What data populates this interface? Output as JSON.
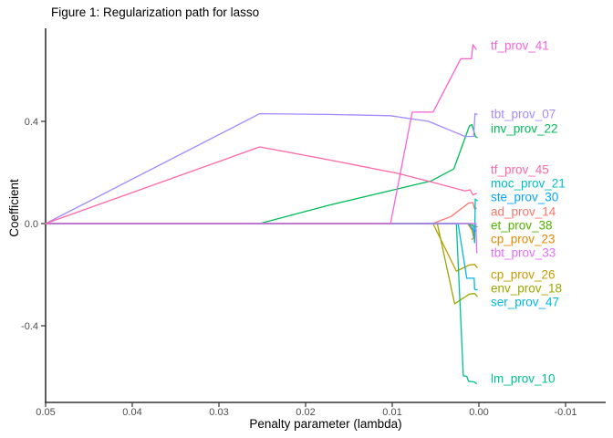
{
  "title": "Figure 1: Regularization path for lasso",
  "chart_data": {
    "type": "line",
    "title": "Figure 1: Regularization path for lasso",
    "xlabel": "Penalty parameter (lambda)",
    "ylabel": "Coefficient",
    "grid": false,
    "legend": "direct colored labels at right edge of lines",
    "x_axis": {
      "reversed": true,
      "range": [
        0.05,
        -0.0115
      ],
      "ticks": [
        0.05,
        0.04,
        0.03,
        0.02,
        0.01,
        0.0,
        -0.01
      ],
      "tick_labels": [
        "0.05",
        "0.04",
        "0.03",
        "0.02",
        "0.01",
        "0.00",
        "-0.01"
      ]
    },
    "y_axis": {
      "range": [
        -0.66,
        0.72
      ],
      "ticks": [
        0.4,
        0.0,
        -0.4
      ],
      "tick_labels": [
        "0.4",
        "0.0",
        "-0.4"
      ]
    },
    "colors": {
      "axis_line": "#333333",
      "tick_text": "#4d4d4d",
      "title_text": "#000000"
    },
    "series": [
      {
        "name": "ad_prov_14",
        "color": "#F8766D",
        "label_y": 0.046,
        "points": [
          [
            0.05,
            0
          ],
          [
            0.0053,
            0
          ],
          [
            0.0032,
            0.028
          ],
          [
            0.0012,
            0.08
          ],
          [
            0.0007,
            0.082
          ],
          [
            0.0005,
            0.057
          ],
          [
            0.0003,
            0.06
          ]
        ]
      },
      {
        "name": "cp_prov_23",
        "color": "#E38900",
        "label_y": -0.061,
        "points": [
          [
            0.05,
            0
          ],
          [
            0.0013,
            0
          ],
          [
            0.0008,
            -0.025
          ],
          [
            0.0006,
            -0.055
          ],
          [
            0.0008,
            -0.062
          ]
        ]
      },
      {
        "name": "cp_prov_26",
        "color": "#C49A00",
        "label_y": -0.2,
        "points": [
          [
            0.05,
            0
          ],
          [
            0.0053,
            0
          ],
          [
            0.0026,
            -0.186
          ],
          [
            0.0011,
            -0.162
          ],
          [
            0.0005,
            -0.16
          ],
          [
            0.0002,
            -0.172
          ]
        ]
      },
      {
        "name": "env_prov_18",
        "color": "#99A800",
        "label_y": -0.254,
        "points": [
          [
            0.05,
            0
          ],
          [
            0.0048,
            0
          ],
          [
            0.0028,
            -0.314
          ],
          [
            0.0011,
            -0.276
          ],
          [
            0.0005,
            -0.274
          ],
          [
            0.0002,
            -0.285
          ]
        ]
      },
      {
        "name": "et_prov_38",
        "color": "#53B400",
        "label_y": -0.007,
        "points": [
          [
            0.05,
            0
          ],
          [
            0.0012,
            0
          ],
          [
            0.0005,
            -0.012
          ],
          [
            0.0002,
            -0.012
          ]
        ]
      },
      {
        "name": "inv_prov_22",
        "color": "#00BC56",
        "label_y": 0.371,
        "points": [
          [
            0.05,
            0
          ],
          [
            0.0253,
            0
          ],
          [
            0.0174,
            0.071
          ],
          [
            0.0055,
            0.167
          ],
          [
            0.0029,
            0.214
          ],
          [
            0.0011,
            0.382
          ],
          [
            0.0008,
            0.387
          ],
          [
            0.0004,
            0.34
          ],
          [
            0.0002,
            0.337
          ]
        ]
      },
      {
        "name": "lm_prov_10",
        "color": "#00C094",
        "label_y": -0.607,
        "points": [
          [
            0.05,
            0
          ],
          [
            0.0026,
            0
          ],
          [
            0.0018,
            -0.596
          ],
          [
            0.0014,
            -0.598
          ],
          [
            0.0012,
            -0.617
          ],
          [
            0.0005,
            -0.62
          ],
          [
            0.0003,
            -0.627
          ]
        ]
      },
      {
        "name": "moc_prov_21",
        "color": "#00BFC4",
        "label_y": 0.157,
        "points": [
          [
            0.05,
            0
          ],
          [
            0.0007,
            0
          ],
          [
            0.0005,
            -0.075
          ],
          [
            0.00042,
            0.096
          ],
          [
            0.0002,
            0.09
          ]
        ]
      },
      {
        "name": "ser_prov_47",
        "color": "#00B6EB",
        "label_y": -0.307,
        "points": [
          [
            0.05,
            0
          ],
          [
            0.0024,
            0
          ],
          [
            0.0014,
            -0.214
          ],
          [
            0.00055,
            -0.214
          ],
          [
            0.0005,
            -0.257
          ],
          [
            0.0002,
            -0.26
          ]
        ]
      },
      {
        "name": "ste_prov_30",
        "color": "#06A4FF",
        "label_y": 0.104,
        "points": [
          [
            0.05,
            0
          ],
          [
            0.0012,
            0
          ],
          [
            0.0008,
            -0.018
          ],
          [
            0.0005,
            -0.03
          ],
          [
            0.0003,
            -0.028
          ]
        ]
      },
      {
        "name": "tbt_prov_07",
        "color": "#A58AFF",
        "label_y": 0.429,
        "points": [
          [
            0.05,
            0
          ],
          [
            0.0253,
            0.43
          ],
          [
            0.0174,
            0.427
          ],
          [
            0.0102,
            0.422
          ],
          [
            0.0058,
            0.4
          ],
          [
            0.0016,
            0.341
          ],
          [
            0.0006,
            0.341
          ],
          [
            0.00045,
            0.43
          ],
          [
            0.0002,
            0.428
          ]
        ]
      },
      {
        "name": "tbt_prov_33",
        "color": "#DF70F8",
        "label_y": -0.114,
        "points": [
          [
            0.05,
            0
          ],
          [
            0.00035,
            0
          ],
          [
            0.00025,
            -0.114
          ],
          [
            0.0002,
            -0.114
          ]
        ]
      },
      {
        "name": "tf_prov_41",
        "color": "#FB61D7",
        "label_y": 0.696,
        "points": [
          [
            0.05,
            0
          ],
          [
            0.0102,
            0
          ],
          [
            0.0077,
            0.436
          ],
          [
            0.0053,
            0.436
          ],
          [
            0.0021,
            0.645
          ],
          [
            0.00085,
            0.645
          ],
          [
            0.0007,
            0.7
          ],
          [
            0.0003,
            0.682
          ]
        ]
      },
      {
        "name": "tf_prov_45",
        "color": "#FF66A8",
        "label_y": 0.211,
        "points": [
          [
            0.05,
            0
          ],
          [
            0.0253,
            0.3
          ],
          [
            0.0174,
            0.25
          ],
          [
            0.0093,
            0.196
          ],
          [
            0.0053,
            0.161
          ],
          [
            0.0016,
            0.128
          ],
          [
            0.001,
            0.132
          ],
          [
            0.0007,
            0.112
          ],
          [
            0.0003,
            0.118
          ]
        ]
      }
    ]
  }
}
